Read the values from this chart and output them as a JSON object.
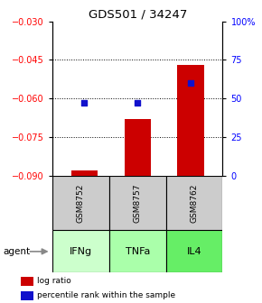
{
  "title": "GDS501 / 34247",
  "categories": [
    "IFNg",
    "TNFa",
    "IL4"
  ],
  "sample_labels": [
    "GSM8752",
    "GSM8757",
    "GSM8762"
  ],
  "log_ratios": [
    -0.088,
    -0.068,
    -0.047
  ],
  "percentile_ranks": [
    47,
    47,
    60
  ],
  "ylim_left": [
    -0.09,
    -0.03
  ],
  "ylim_right": [
    0,
    100
  ],
  "yticks_left": [
    -0.09,
    -0.075,
    -0.06,
    -0.045,
    -0.03
  ],
  "yticks_right": [
    0,
    25,
    50,
    75,
    100
  ],
  "bar_color": "#cc0000",
  "dot_color": "#1111cc",
  "agent_bg_colors": [
    "#ccffcc",
    "#aaffaa",
    "#66ee66"
  ],
  "sample_bg_color": "#cccccc",
  "legend_bar_label": "log ratio",
  "legend_dot_label": "percentile rank within the sample",
  "agent_row_label": "agent"
}
